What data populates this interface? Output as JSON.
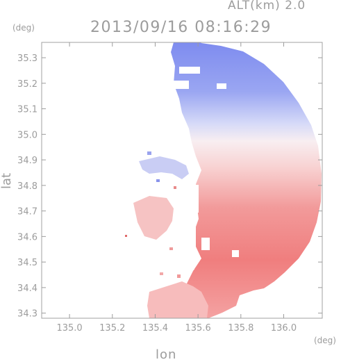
{
  "header": {
    "altitude_label": "ALT(km) 2.0",
    "timestamp": "2013/09/16 08:16:29"
  },
  "axes": {
    "y_unit": "(deg)",
    "x_unit": "(deg)",
    "y_label": "lat",
    "x_label": "lon"
  },
  "chart_data": {
    "type": "heatmap",
    "x_ticks": [
      135.0,
      135.2,
      135.4,
      135.6,
      135.8,
      136.0
    ],
    "y_ticks": [
      34.3,
      34.4,
      34.5,
      34.6,
      34.7,
      34.8,
      34.9,
      35.0,
      35.1,
      35.2,
      35.3
    ],
    "xlim": [
      134.87,
      136.18
    ],
    "ylim": [
      34.28,
      35.36
    ],
    "radar_center": [
      135.55,
      34.82
    ],
    "colors": {
      "approaching": "#6f7ff0",
      "receding": "#f06a6a",
      "neutral": "#f6eef2",
      "axis": "#9c9c9c"
    }
  }
}
